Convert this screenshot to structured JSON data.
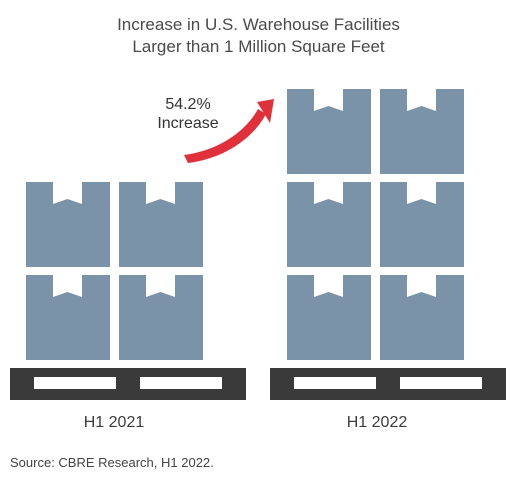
{
  "title": {
    "line1": "Increase in U.S. Warehouse Facilities",
    "line2": "Larger than 1 Million Square Feet"
  },
  "callout": {
    "value": "54.2%",
    "label": "Increase"
  },
  "source": "Source: CBRE Research, H1 2022.",
  "colors": {
    "box": "#7b93a8",
    "pallet": "#3a3a3a",
    "arrow": "#e0313b",
    "text": "#4a4a4a"
  },
  "chart_data": {
    "type": "bar",
    "categories": [
      "H1 2021",
      "H1 2022"
    ],
    "values": [
      4,
      6
    ],
    "annotation": "54.2% Increase"
  }
}
